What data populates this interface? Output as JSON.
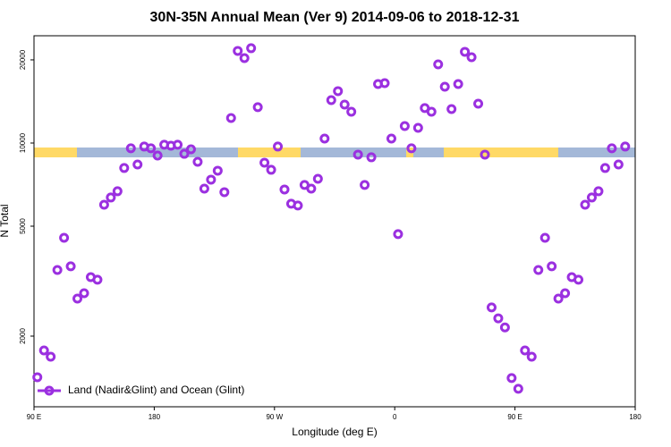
{
  "chart_data": {
    "type": "scatter",
    "title": "30N-35N Annual Mean (Ver 9)   2014-09-06 to 2018-12-31",
    "xlabel": "Longitude (deg E)",
    "ylabel": "N Total",
    "xlim": [
      90,
      540
    ],
    "xticks": [
      {
        "value": 90,
        "label": "90 E"
      },
      180,
      {
        "value": 270,
        "label": "90 W"
      },
      {
        "value": 360,
        "label": "0"
      },
      {
        "value": 450,
        "label": "90 E"
      },
      {
        "value": 540,
        "label": "180"
      }
    ],
    "ylim": [
      1110,
      24450
    ],
    "yticks": [
      2000,
      5000,
      10000,
      20000
    ],
    "log_y": true,
    "legend": "bottom-left",
    "series": [
      {
        "name": "Land (Nadir&Glint) and Ocean (Glint)",
        "color": "#9b30e0",
        "x": [
          92.5,
          97.5,
          102.5,
          107.5,
          112.5,
          117.5,
          122.5,
          127.5,
          132.5,
          137.5,
          142.5,
          147.5,
          152.5,
          157.5,
          162.5,
          167.5,
          172.5,
          177.5,
          182.5,
          187.5,
          192.5,
          197.5,
          202.5,
          207.5,
          212.5,
          217.5,
          222.5,
          227.5,
          232.5,
          237.5,
          242.5,
          247.5,
          252.5,
          257.5,
          262.5,
          267.5,
          272.5,
          277.5,
          282.5,
          287.5,
          292.5,
          297.5,
          302.5,
          307.5,
          312.5,
          317.5,
          322.5,
          327.5,
          332.5,
          337.5,
          342.5,
          347.5,
          352.5,
          357.5,
          362.5,
          367.5,
          372.5,
          377.5,
          382.5,
          387.5,
          392.5,
          397.5,
          402.5,
          407.5,
          412.5,
          417.5,
          422.5,
          427.5,
          432.5,
          437.5,
          442.5,
          447.5,
          452.5,
          457.5,
          462.5,
          467.5,
          472.5,
          477.5,
          482.5,
          487.5,
          492.5,
          497.5,
          502.5,
          507.5,
          512.5,
          517.5,
          522.5,
          527.5,
          532.5
        ],
        "values": [
          1420,
          1775,
          1685,
          3470,
          4540,
          3580,
          2735,
          2860,
          3270,
          3200,
          5980,
          6350,
          6690,
          8120,
          9570,
          8360,
          9710,
          9570,
          9010,
          9860,
          9780,
          9860,
          9140,
          9490,
          8550,
          6840,
          7370,
          7940,
          6640,
          12320,
          21550,
          20300,
          22040,
          13480,
          8490,
          8000,
          9710,
          6790,
          6030,
          5940,
          7050,
          6840,
          7420,
          10380,
          14300,
          15410,
          13780,
          12980,
          9080,
          7050,
          8880,
          16350,
          16470,
          10380,
          4680,
          11520,
          9570,
          11350,
          13380,
          12980,
          19270,
          15990,
          13270,
          16350,
          21390,
          20450,
          13880,
          9080,
          2540,
          2320,
          2150,
          1410,
          1290,
          1775,
          1685,
          3470,
          4540,
          3580,
          2735,
          2860,
          3270,
          3200,
          5980,
          6350,
          6690,
          8120,
          9570,
          8360,
          9710
        ]
      }
    ]
  }
}
